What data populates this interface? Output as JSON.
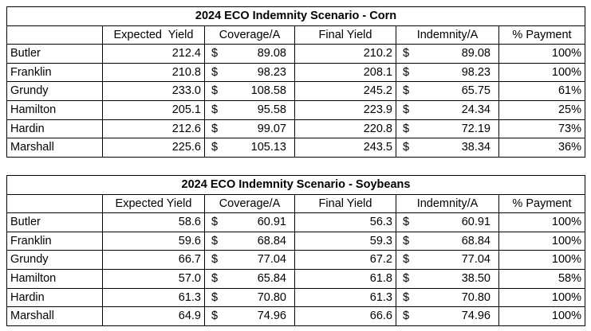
{
  "corn": {
    "title": "2024 ECO Indemnity Scenario - Corn",
    "headers": [
      "",
      "Expected  Yield",
      "Coverage/A",
      "Final Yield",
      "Indemnity/A",
      "% Payment"
    ],
    "rows": [
      {
        "county": "Butler",
        "expected": "212.4",
        "coverage": "89.08",
        "final": "210.2",
        "indemnity": "89.08",
        "payment": "100%"
      },
      {
        "county": "Franklin",
        "expected": "210.8",
        "coverage": "98.23",
        "final": "208.1",
        "indemnity": "98.23",
        "payment": "100%"
      },
      {
        "county": "Grundy",
        "expected": "233.0",
        "coverage": "108.58",
        "final": "245.2",
        "indemnity": "65.75",
        "payment": "61%"
      },
      {
        "county": "Hamilton",
        "expected": "205.1",
        "coverage": "95.58",
        "final": "223.9",
        "indemnity": "24.34",
        "payment": "25%"
      },
      {
        "county": "Hardin",
        "expected": "212.6",
        "coverage": "99.07",
        "final": "220.8",
        "indemnity": "72.19",
        "payment": "73%"
      },
      {
        "county": "Marshall",
        "expected": "225.6",
        "coverage": "105.13",
        "final": "243.5",
        "indemnity": "38.34",
        "payment": "36%"
      }
    ]
  },
  "soybeans": {
    "title": "2024 ECO Indemnity Scenario - Soybeans",
    "headers": [
      "",
      "Expected Yield",
      "Coverage/A",
      "Final Yield",
      "Indemnity/A",
      "% Payment"
    ],
    "rows": [
      {
        "county": "Butler",
        "expected": "58.6",
        "coverage": "60.91",
        "final": "56.3",
        "indemnity": "60.91",
        "payment": "100%"
      },
      {
        "county": "Franklin",
        "expected": "59.6",
        "coverage": "68.84",
        "final": "59.3",
        "indemnity": "68.84",
        "payment": "100%"
      },
      {
        "county": "Grundy",
        "expected": "66.7",
        "coverage": "77.04",
        "final": "67.2",
        "indemnity": "77.04",
        "payment": "100%"
      },
      {
        "county": "Hamilton",
        "expected": "57.0",
        "coverage": "65.84",
        "final": "61.8",
        "indemnity": "38.50",
        "payment": "58%"
      },
      {
        "county": "Hardin",
        "expected": "61.3",
        "coverage": "70.80",
        "final": "61.3",
        "indemnity": "70.80",
        "payment": "100%"
      },
      {
        "county": "Marshall",
        "expected": "64.9",
        "coverage": "74.96",
        "final": "66.6",
        "indemnity": "74.96",
        "payment": "100%"
      }
    ]
  },
  "currency_symbol": "$"
}
